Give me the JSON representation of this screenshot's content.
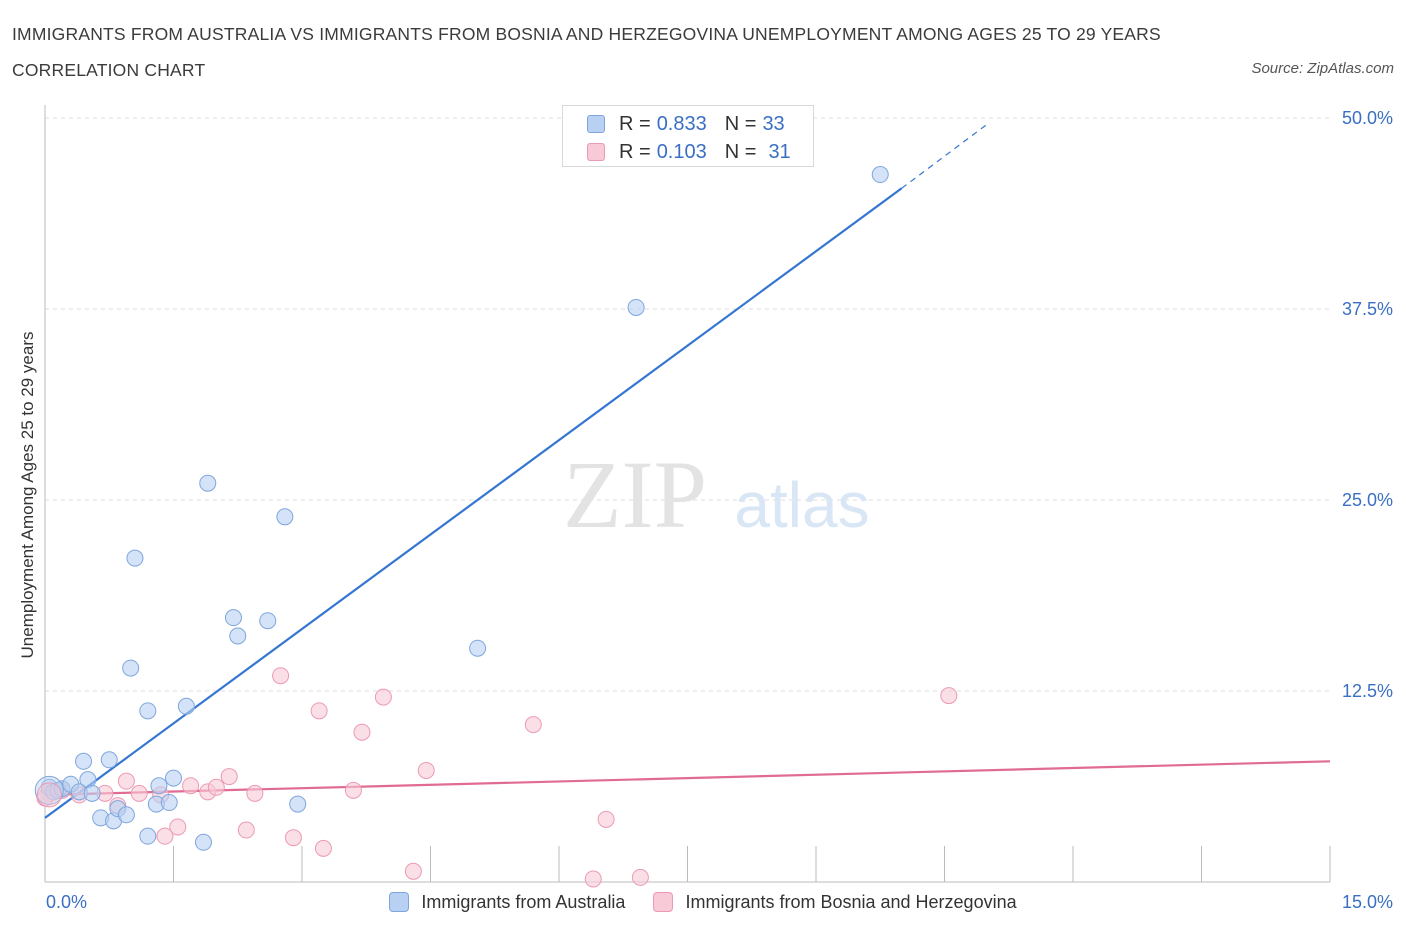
{
  "header": {
    "title": "IMMIGRANTS FROM AUSTRALIA VS IMMIGRANTS FROM BOSNIA AND HERZEGOVINA UNEMPLOYMENT AMONG AGES 25 TO 29 YEARS CORRELATION CHART",
    "source": "Source: ZipAtlas.com"
  },
  "legend": {
    "r_label": "R =",
    "n_label": "N =",
    "series": [
      {
        "r": "0.833",
        "n": "33"
      },
      {
        "r": "0.103",
        "n": "31"
      }
    ]
  },
  "watermark": {
    "zip": "ZIP",
    "atlas": "atlas"
  },
  "colors": {
    "australia_fill": "#b8d0f2",
    "australia_stroke": "#7fa6dc",
    "australia_line": "#3476d1",
    "bosnia_fill": "#f8c9d7",
    "bosnia_stroke": "#ec9ab3",
    "bosnia_line": "#e06b93",
    "axis_label": "#3a6fc4"
  },
  "chart_data": {
    "type": "scatter",
    "title": "IMMIGRANTS FROM AUSTRALIA VS IMMIGRANTS FROM BOSNIA AND HERZEGOVINA UNEMPLOYMENT AMONG AGES 25 TO 29 YEARS CORRELATION CHART",
    "xlabel": "",
    "ylabel": "Unemployment Among Ages 25 to 29 years",
    "xlim": [
      0,
      15
    ],
    "ylim": [
      0,
      50
    ],
    "x_tick_labels": [
      "0.0%",
      "15.0%"
    ],
    "y_tick_labels": [
      "12.5%",
      "25.0%",
      "37.5%",
      "50.0%"
    ],
    "y_ticks": [
      12.5,
      25,
      37.5,
      50
    ],
    "x_ticks": [
      0,
      1.5,
      3,
      4.5,
      6,
      7.5,
      9,
      10.5,
      12,
      13.5,
      15
    ],
    "legend_position": "top-center",
    "series": [
      {
        "name": "Immigrants from Australia",
        "r": 0.833,
        "n": 33,
        "trend": {
          "x0": 0,
          "y0": 4.2,
          "x1": 10.0,
          "y1": 45.4,
          "dashed_to_x": 11.0,
          "dashed_to_y": 49.6
        },
        "points": [
          [
            0.05,
            6.2
          ],
          [
            0.1,
            5.9
          ],
          [
            0.15,
            6.0
          ],
          [
            0.2,
            6.1
          ],
          [
            0.3,
            6.4
          ],
          [
            0.4,
            5.9
          ],
          [
            0.45,
            7.9
          ],
          [
            0.5,
            6.7
          ],
          [
            0.55,
            5.8
          ],
          [
            0.65,
            4.2
          ],
          [
            0.75,
            8.0
          ],
          [
            0.8,
            4.0
          ],
          [
            0.85,
            4.8
          ],
          [
            0.95,
            4.4
          ],
          [
            1.0,
            14.0
          ],
          [
            1.05,
            21.2
          ],
          [
            1.2,
            3.0
          ],
          [
            1.2,
            11.2
          ],
          [
            1.3,
            5.1
          ],
          [
            1.33,
            6.3
          ],
          [
            1.45,
            5.2
          ],
          [
            1.5,
            6.8
          ],
          [
            1.65,
            11.5
          ],
          [
            1.85,
            2.6
          ],
          [
            1.9,
            26.1
          ],
          [
            2.2,
            17.3
          ],
          [
            2.25,
            16.1
          ],
          [
            2.6,
            17.1
          ],
          [
            2.8,
            23.9
          ],
          [
            2.95,
            5.1
          ],
          [
            5.05,
            15.3
          ],
          [
            6.9,
            37.6
          ],
          [
            9.75,
            46.3
          ]
        ]
      },
      {
        "name": "Immigrants from Bosnia and Herzegovina",
        "r": 0.103,
        "n": 31,
        "trend": {
          "x0": 0,
          "y0": 5.7,
          "x1": 15.0,
          "y1": 7.9
        },
        "points": [
          [
            0.05,
            5.8
          ],
          [
            0.4,
            5.7
          ],
          [
            0.7,
            5.8
          ],
          [
            0.85,
            5.0
          ],
          [
            0.95,
            6.6
          ],
          [
            1.1,
            5.8
          ],
          [
            1.35,
            5.7
          ],
          [
            1.4,
            3.0
          ],
          [
            1.55,
            3.6
          ],
          [
            1.7,
            6.3
          ],
          [
            1.9,
            5.9
          ],
          [
            2.0,
            6.2
          ],
          [
            2.15,
            6.9
          ],
          [
            2.35,
            3.4
          ],
          [
            2.45,
            5.8
          ],
          [
            2.75,
            13.5
          ],
          [
            2.9,
            2.9
          ],
          [
            3.2,
            11.2
          ],
          [
            3.25,
            2.2
          ],
          [
            3.6,
            6.0
          ],
          [
            3.7,
            9.8
          ],
          [
            3.95,
            12.1
          ],
          [
            4.3,
            0.7
          ],
          [
            4.45,
            7.3
          ],
          [
            5.7,
            10.3
          ],
          [
            6.4,
            0.2
          ],
          [
            6.55,
            4.1
          ],
          [
            6.95,
            0.3
          ],
          [
            10.55,
            12.2
          ],
          [
            0.0,
            5.5
          ],
          [
            0.2,
            6.0
          ]
        ]
      }
    ]
  },
  "bottom_legend": {
    "items": [
      {
        "label": "Immigrants from Australia"
      },
      {
        "label": "Immigrants from Bosnia and Herzegovina"
      }
    ]
  }
}
